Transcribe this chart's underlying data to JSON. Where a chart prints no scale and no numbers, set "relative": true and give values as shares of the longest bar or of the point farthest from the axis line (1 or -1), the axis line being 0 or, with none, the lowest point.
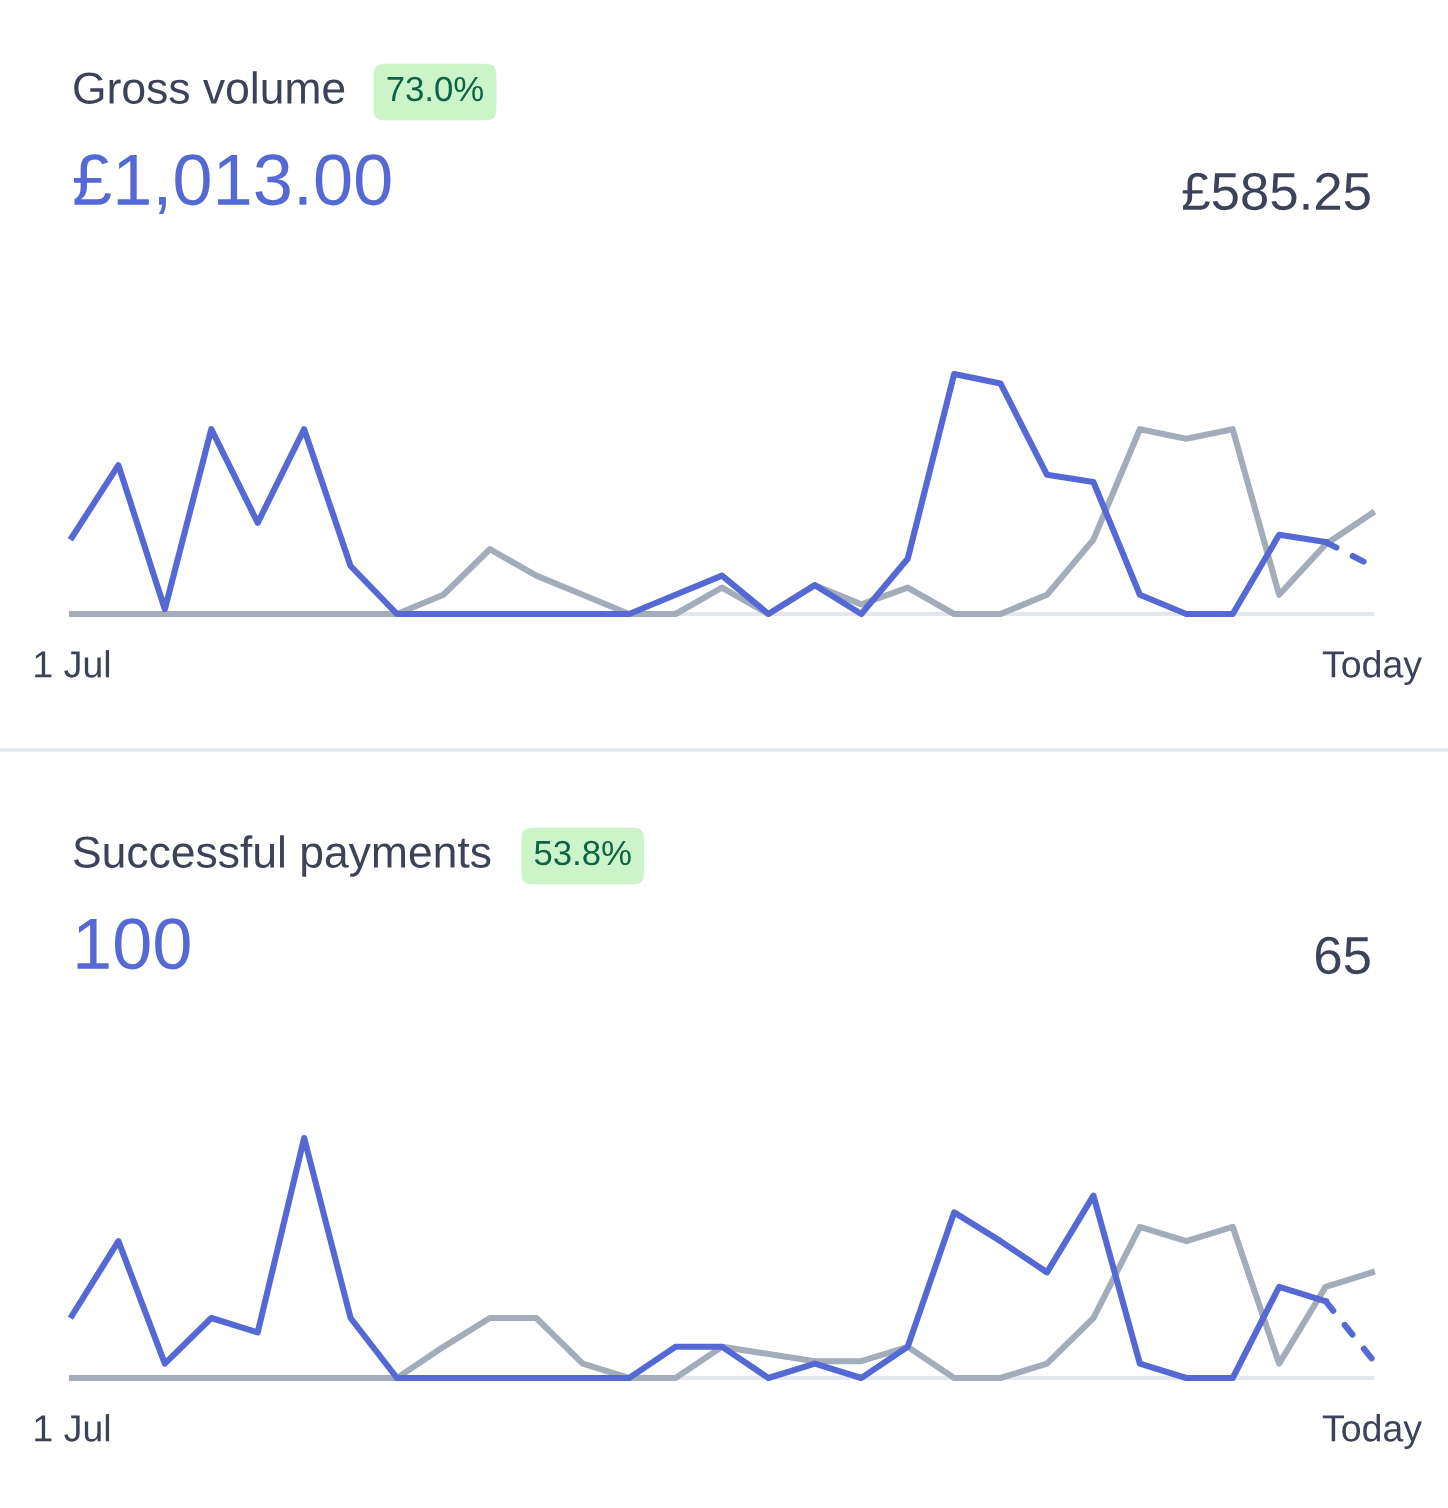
{
  "chart_data": [
    {
      "type": "line",
      "title": "Gross volume",
      "relative": true,
      "marker": "none",
      "annotations": [
        "73.0%",
        "£1,013.00",
        "£585.25"
      ],
      "categories": [
        "1 Jul",
        null,
        null,
        null,
        null,
        null,
        null,
        null,
        null,
        null,
        null,
        null,
        null,
        null,
        null,
        null,
        null,
        null,
        null,
        null,
        null,
        null,
        null,
        null,
        null,
        null,
        null,
        null,
        "Today"
      ],
      "series": [
        {
          "color": "#a3acb9",
          "line_style": "solid",
          "values": [
            0,
            0,
            0,
            0,
            0,
            0,
            0,
            0,
            0.08,
            0.27,
            0.16,
            0.08,
            0,
            0,
            0.11,
            0,
            0.12,
            0.04,
            0.11,
            0,
            0,
            0.08,
            0.31,
            0.77,
            0.73,
            0.77,
            0.08,
            0.29,
            0.42
          ]
        },
        {
          "color": "#5469d4",
          "line_style": "solid",
          "values": [
            0.32,
            0.62,
            0.02,
            0.77,
            0.38,
            0.77,
            0.2,
            0,
            0,
            0,
            0,
            0,
            0,
            0.08,
            0.16,
            0,
            0.12,
            0,
            0.23,
            1,
            0.96,
            0.58,
            0.55,
            0.08,
            0,
            0,
            0.33,
            0.3,
            null
          ]
        },
        {
          "color": "#5469d4",
          "line_style": "dotted",
          "values": [
            null,
            null,
            null,
            null,
            null,
            null,
            null,
            null,
            null,
            null,
            null,
            null,
            null,
            null,
            null,
            null,
            null,
            null,
            null,
            null,
            null,
            null,
            null,
            null,
            null,
            null,
            null,
            0.3,
            0.2
          ]
        }
      ]
    },
    {
      "type": "line",
      "title": "Successful payments",
      "relative": true,
      "marker": "none",
      "annotations": [
        "53.8%",
        "100",
        "65"
      ],
      "categories": [
        "1 Jul",
        null,
        null,
        null,
        null,
        null,
        null,
        null,
        null,
        null,
        null,
        null,
        null,
        null,
        null,
        null,
        null,
        null,
        null,
        null,
        null,
        null,
        null,
        null,
        null,
        null,
        null,
        null,
        "Today"
      ],
      "series": [
        {
          "color": "#a3acb9",
          "line_style": "solid",
          "values": [
            0,
            0,
            0,
            0,
            0,
            0,
            0,
            0,
            0.13,
            0.25,
            0.25,
            0.06,
            0,
            0,
            0.13,
            0.1,
            0.07,
            0.07,
            0.13,
            0,
            0,
            0.06,
            0.25,
            0.63,
            0.57,
            0.63,
            0.06,
            0.38,
            0.44
          ]
        },
        {
          "color": "#5469d4",
          "line_style": "solid",
          "values": [
            0.26,
            0.57,
            0.06,
            0.25,
            0.19,
            1,
            0.25,
            0,
            0,
            0,
            0,
            0,
            0,
            0.13,
            0.13,
            0,
            0.06,
            0,
            0.13,
            0.69,
            0.57,
            0.44,
            0.76,
            0.06,
            0,
            0,
            0.38,
            0.32,
            null
          ]
        },
        {
          "color": "#5469d4",
          "line_style": "dotted",
          "values": [
            null,
            null,
            null,
            null,
            null,
            null,
            null,
            null,
            null,
            null,
            null,
            null,
            null,
            null,
            null,
            null,
            null,
            null,
            null,
            null,
            null,
            null,
            null,
            null,
            null,
            null,
            null,
            0.32,
            0.08
          ]
        }
      ]
    }
  ]
}
